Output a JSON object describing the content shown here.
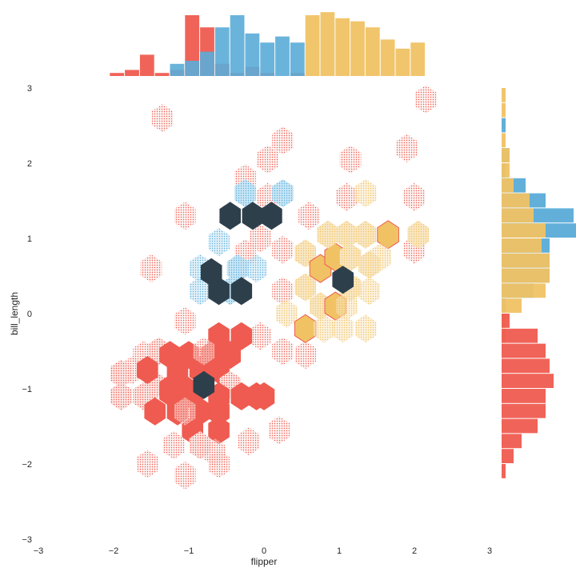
{
  "chart_data": {
    "type": "heatmap",
    "subtype": "jointplot-hexbin",
    "xlabel": "flipper",
    "ylabel": "bill_length",
    "xlim": [
      -3,
      3
    ],
    "ylim": [
      -3,
      3
    ],
    "x_ticks": [
      "−3",
      "−2",
      "−1",
      "0",
      "1",
      "2",
      "3"
    ],
    "y_ticks": [
      "3",
      "2",
      "1",
      "0",
      "−1",
      "−2",
      "−3"
    ],
    "grid": false,
    "legend": "none",
    "colors": {
      "red": "#ef5b50",
      "blue": "#5aacd8",
      "gold": "#f0c264",
      "dark": "#2e3f4c"
    },
    "hex_cells": [
      {
        "series": "red",
        "x": -1.35,
        "y": 2.6,
        "level": 1
      },
      {
        "series": "red",
        "x": -1.5,
        "y": 0.6,
        "level": 1
      },
      {
        "series": "red",
        "x": -1.05,
        "y": 1.3,
        "level": 1
      },
      {
        "series": "red",
        "x": -0.25,
        "y": 1.8,
        "level": 1
      },
      {
        "series": "red",
        "x": 0.05,
        "y": 2.05,
        "level": 1
      },
      {
        "series": "red",
        "x": 0.25,
        "y": 2.3,
        "level": 1
      },
      {
        "series": "red",
        "x": 0.05,
        "y": 1.55,
        "level": 1
      },
      {
        "series": "red",
        "x": -0.05,
        "y": 1.0,
        "level": 1
      },
      {
        "series": "red",
        "x": 0.25,
        "y": 0.85,
        "level": 1
      },
      {
        "series": "red",
        "x": 0.25,
        "y": 0.3,
        "level": 1
      },
      {
        "series": "red",
        "x": -0.25,
        "y": 0.8,
        "level": 1
      },
      {
        "series": "red",
        "x": 0.6,
        "y": 1.3,
        "level": 1
      },
      {
        "series": "red",
        "x": 0.85,
        "y": 1.05,
        "level": 1
      },
      {
        "series": "red",
        "x": 1.1,
        "y": 1.55,
        "level": 1
      },
      {
        "series": "red",
        "x": 1.15,
        "y": 2.05,
        "level": 1
      },
      {
        "series": "red",
        "x": 1.9,
        "y": 2.2,
        "level": 1
      },
      {
        "series": "red",
        "x": 2.15,
        "y": 2.85,
        "level": 1
      },
      {
        "series": "red",
        "x": 2.0,
        "y": 1.55,
        "level": 1
      },
      {
        "series": "red",
        "x": 2.0,
        "y": 0.85,
        "level": 1
      },
      {
        "series": "red",
        "x": 0.55,
        "y": -0.55,
        "level": 1
      },
      {
        "series": "red",
        "x": 0.25,
        "y": -0.5,
        "level": 1
      },
      {
        "series": "red",
        "x": -0.05,
        "y": -0.3,
        "level": 1
      },
      {
        "series": "red",
        "x": -1.05,
        "y": -0.1,
        "level": 1
      },
      {
        "series": "red",
        "x": -1.6,
        "y": -0.55,
        "level": 1
      },
      {
        "series": "red",
        "x": -1.75,
        "y": -0.75,
        "level": 1
      },
      {
        "series": "red",
        "x": -1.9,
        "y": -1.1,
        "level": 2
      },
      {
        "series": "red",
        "x": -1.9,
        "y": -0.8,
        "level": 2
      },
      {
        "series": "red",
        "x": -1.6,
        "y": -1.1,
        "level": 2
      },
      {
        "series": "red",
        "x": -1.4,
        "y": -0.5,
        "level": 2
      },
      {
        "series": "red",
        "x": -1.45,
        "y": -0.95,
        "level": 2
      },
      {
        "series": "red",
        "x": -1.25,
        "y": -1.05,
        "level": 3
      },
      {
        "series": "red",
        "x": -1.25,
        "y": -0.55,
        "level": 3
      },
      {
        "series": "red",
        "x": -1.0,
        "y": -0.55,
        "level": 3
      },
      {
        "series": "red",
        "x": -0.7,
        "y": -0.55,
        "level": 3
      },
      {
        "series": "red",
        "x": -0.45,
        "y": -0.55,
        "level": 3
      },
      {
        "series": "red",
        "x": -0.6,
        "y": -0.3,
        "level": 3
      },
      {
        "series": "red",
        "x": -0.3,
        "y": -0.3,
        "level": 3
      },
      {
        "series": "red",
        "x": -1.55,
        "y": -0.75,
        "level": 3
      },
      {
        "series": "red",
        "x": -1.15,
        "y": -0.75,
        "level": 3
      },
      {
        "series": "red",
        "x": -0.85,
        "y": -0.75,
        "level": 3
      },
      {
        "series": "red",
        "x": -0.6,
        "y": -0.75,
        "level": 3
      },
      {
        "series": "red",
        "x": -0.45,
        "y": -0.95,
        "level": 2
      },
      {
        "series": "red",
        "x": -1.25,
        "y": -1.0,
        "level": 3
      },
      {
        "series": "red",
        "x": -1.05,
        "y": -1.0,
        "level": 3
      },
      {
        "series": "red",
        "x": -0.95,
        "y": -1.1,
        "level": 3
      },
      {
        "series": "red",
        "x": -0.6,
        "y": -1.1,
        "level": 3
      },
      {
        "series": "red",
        "x": -0.3,
        "y": -1.1,
        "level": 3
      },
      {
        "series": "red",
        "x": -0.1,
        "y": -1.1,
        "level": 3
      },
      {
        "series": "red",
        "x": -1.45,
        "y": -1.3,
        "level": 3
      },
      {
        "series": "red",
        "x": -1.15,
        "y": -1.3,
        "level": 3
      },
      {
        "series": "red",
        "x": -0.85,
        "y": -1.3,
        "level": 3
      },
      {
        "series": "red",
        "x": -0.6,
        "y": -1.3,
        "level": 3
      },
      {
        "series": "red",
        "x": -0.95,
        "y": -1.55,
        "level": 3
      },
      {
        "series": "red",
        "x": -0.6,
        "y": -1.55,
        "level": 3
      },
      {
        "series": "red",
        "x": -0.85,
        "y": -1.75,
        "level": 2
      },
      {
        "series": "red",
        "x": -1.2,
        "y": -1.75,
        "level": 1
      },
      {
        "series": "red",
        "x": -0.65,
        "y": -1.85,
        "level": 1
      },
      {
        "series": "red",
        "x": -0.2,
        "y": -1.7,
        "level": 1
      },
      {
        "series": "red",
        "x": 0.2,
        "y": -1.55,
        "level": 1
      },
      {
        "series": "red",
        "x": 0.0,
        "y": -1.1,
        "level": 3
      },
      {
        "series": "red",
        "x": -1.55,
        "y": -2.0,
        "level": 1
      },
      {
        "series": "red",
        "x": -1.05,
        "y": -2.15,
        "level": 1
      },
      {
        "series": "red",
        "x": -0.6,
        "y": -2.0,
        "level": 1
      },
      {
        "series": "red",
        "x": -1.05,
        "y": -1.3,
        "level": 1
      },
      {
        "series": "red",
        "x": -0.8,
        "y": -0.5,
        "level": 1
      },
      {
        "series": "dark",
        "x": -0.8,
        "y": -0.95,
        "level": 4
      },
      {
        "series": "blue",
        "x": -0.25,
        "y": 1.6,
        "level": 2
      },
      {
        "series": "blue",
        "x": 0.25,
        "y": 1.6,
        "level": 2
      },
      {
        "series": "blue",
        "x": -0.6,
        "y": 0.95,
        "level": 1
      },
      {
        "series": "blue",
        "x": -0.85,
        "y": 0.6,
        "level": 1
      },
      {
        "series": "blue",
        "x": -0.85,
        "y": 0.3,
        "level": 1
      },
      {
        "series": "blue",
        "x": -0.1,
        "y": 0.6,
        "level": 1
      },
      {
        "series": "blue",
        "x": -0.35,
        "y": 0.6,
        "level": 2
      },
      {
        "series": "blue",
        "x": -0.45,
        "y": 0.3,
        "level": 2
      },
      {
        "series": "blue",
        "x": -0.3,
        "y": 0.3,
        "level": 1
      },
      {
        "series": "dark",
        "x": -0.45,
        "y": 1.3,
        "level": 4
      },
      {
        "series": "dark",
        "x": -0.15,
        "y": 1.3,
        "level": 4
      },
      {
        "series": "dark",
        "x": 0.1,
        "y": 1.3,
        "level": 4
      },
      {
        "series": "dark",
        "x": -0.7,
        "y": 0.55,
        "level": 4
      },
      {
        "series": "dark",
        "x": -0.6,
        "y": 0.3,
        "level": 4
      },
      {
        "series": "dark",
        "x": -0.3,
        "y": 0.3,
        "level": 4
      },
      {
        "series": "gold",
        "x": 0.3,
        "y": 0.0,
        "level": 1
      },
      {
        "series": "gold",
        "x": 0.55,
        "y": 0.8,
        "level": 2
      },
      {
        "series": "gold",
        "x": 0.55,
        "y": 0.35,
        "level": 2
      },
      {
        "series": "gold",
        "x": 0.75,
        "y": 0.1,
        "level": 2
      },
      {
        "series": "gold",
        "x": 0.75,
        "y": 0.6,
        "level": 3
      },
      {
        "series": "gold",
        "x": 0.95,
        "y": 0.75,
        "level": 3
      },
      {
        "series": "gold",
        "x": 0.95,
        "y": 0.1,
        "level": 3
      },
      {
        "series": "gold",
        "x": 0.85,
        "y": 1.05,
        "level": 2
      },
      {
        "series": "gold",
        "x": 1.1,
        "y": 1.05,
        "level": 2
      },
      {
        "series": "gold",
        "x": 1.35,
        "y": 1.05,
        "level": 2
      },
      {
        "series": "gold",
        "x": 1.35,
        "y": 1.6,
        "level": 1
      },
      {
        "series": "gold",
        "x": 1.15,
        "y": 0.75,
        "level": 2
      },
      {
        "series": "gold",
        "x": 1.4,
        "y": 0.65,
        "level": 2
      },
      {
        "series": "gold",
        "x": 1.4,
        "y": 0.3,
        "level": 1
      },
      {
        "series": "gold",
        "x": 1.15,
        "y": 0.35,
        "level": 2
      },
      {
        "series": "gold",
        "x": 0.55,
        "y": -0.2,
        "level": 3
      },
      {
        "series": "gold",
        "x": 0.8,
        "y": -0.2,
        "level": 1
      },
      {
        "series": "gold",
        "x": 1.05,
        "y": -0.2,
        "level": 1
      },
      {
        "series": "gold",
        "x": 1.35,
        "y": -0.2,
        "level": 1
      },
      {
        "series": "gold",
        "x": 1.1,
        "y": 0.1,
        "level": 1
      },
      {
        "series": "gold",
        "x": 1.65,
        "y": 1.05,
        "level": 3
      },
      {
        "series": "gold",
        "x": 2.05,
        "y": 1.05,
        "level": 2
      },
      {
        "series": "gold",
        "x": 1.55,
        "y": 0.75,
        "level": 1
      },
      {
        "series": "dark",
        "x": 1.05,
        "y": 0.45,
        "level": 4
      }
    ],
    "top_histogram": {
      "bins": [
        -2.05,
        -1.85,
        -1.65,
        -1.45,
        -1.25,
        -1.05,
        -0.85,
        -0.65,
        -0.45,
        -0.25,
        -0.05,
        0.15,
        0.35,
        0.55,
        0.75,
        0.95,
        1.15,
        1.35,
        1.55,
        1.75,
        1.95,
        2.15
      ],
      "series": [
        {
          "color": "red",
          "counts": [
            1,
            2,
            7,
            1,
            2,
            20,
            16,
            4,
            1,
            3,
            1,
            0,
            1,
            0,
            0,
            0,
            0,
            0,
            0,
            0,
            0
          ]
        },
        {
          "color": "blue",
          "counts": [
            0,
            0,
            0,
            0,
            4,
            5,
            8,
            16,
            20,
            14,
            11,
            13,
            11,
            0,
            0,
            0,
            0,
            0,
            0,
            0,
            0
          ]
        },
        {
          "color": "gold",
          "counts": [
            0,
            0,
            0,
            0,
            0,
            0,
            0,
            0,
            0,
            0,
            0,
            0,
            0,
            20,
            21,
            19,
            18,
            16,
            12,
            9,
            11
          ]
        }
      ]
    },
    "right_histogram": {
      "bins": [
        -2.2,
        -2.0,
        -1.8,
        -1.6,
        -1.4,
        -1.2,
        -1.0,
        -0.8,
        -0.6,
        -0.4,
        -0.2,
        0.0,
        0.2,
        0.4,
        0.6,
        0.8,
        1.0,
        1.2,
        1.4,
        1.6,
        1.8,
        2.0,
        2.2,
        2.4,
        2.6,
        2.8,
        3.0
      ],
      "series": [
        {
          "color": "red",
          "counts": [
            1,
            3,
            5,
            9,
            11,
            11,
            13,
            12,
            11,
            9,
            2,
            0,
            0,
            0,
            0,
            0,
            0,
            0,
            0,
            0,
            0,
            0,
            0,
            0,
            0,
            0
          ]
        },
        {
          "color": "blue",
          "counts": [
            0,
            0,
            0,
            0,
            0,
            0,
            0,
            0,
            0,
            0,
            0,
            1,
            8,
            12,
            12,
            12,
            19,
            18,
            11,
            6,
            1,
            2,
            0,
            1,
            0,
            0
          ]
        },
        {
          "color": "gold",
          "counts": [
            0,
            0,
            0,
            0,
            0,
            0,
            0,
            0,
            0,
            1,
            1,
            5,
            11,
            12,
            12,
            10,
            11,
            8,
            7,
            3,
            2,
            2,
            1,
            0,
            1,
            1
          ]
        }
      ]
    }
  }
}
